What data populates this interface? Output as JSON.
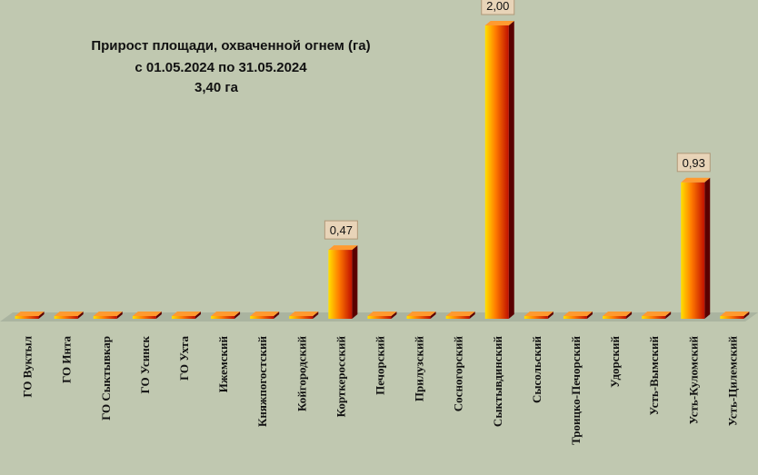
{
  "chart_data": {
    "type": "bar",
    "title_lines": [
      "Прирост площади, охваченной огнем (га)",
      "с 01.05.2024  по  31.05.2024",
      "3,40 га"
    ],
    "categories": [
      "ГО Вуктыл",
      "ГО Инта",
      "ГО Сыктывкар",
      "ГО Усинск",
      "ГО Ухта",
      "Ижемский",
      "Княжпогостский",
      "Койгородский",
      "Корткеросский",
      "Печорский",
      "Прилузский",
      "Сосногорский",
      "Сыктывдинский",
      "Сысольский",
      "Троицко-Печорский",
      "Удорский",
      "Усть-Вымский",
      "Усть-Куломский",
      "Усть-Цилемский"
    ],
    "values": [
      0,
      0,
      0,
      0,
      0,
      0,
      0,
      0,
      0.47,
      0,
      0,
      0,
      2.0,
      0,
      0,
      0,
      0,
      0.93,
      0
    ],
    "data_labels": [
      "",
      "",
      "",
      "",
      "",
      "",
      "",
      "",
      "0,47",
      "",
      "",
      "",
      "2,00",
      "",
      "",
      "",
      "",
      "0,93",
      ""
    ],
    "ylim": [
      0,
      2
    ],
    "grid": false,
    "legend": "none",
    "colors": {
      "background": "#c0c8b0",
      "bar_edge": "#ffe000",
      "bar_mid": "#ff7a00",
      "bar_dark": "#c01000",
      "bar_side": "#5a0000",
      "bar_top": "#ff9a30",
      "label_box": "#e8d4b8",
      "floor": "#aab4a0"
    }
  }
}
